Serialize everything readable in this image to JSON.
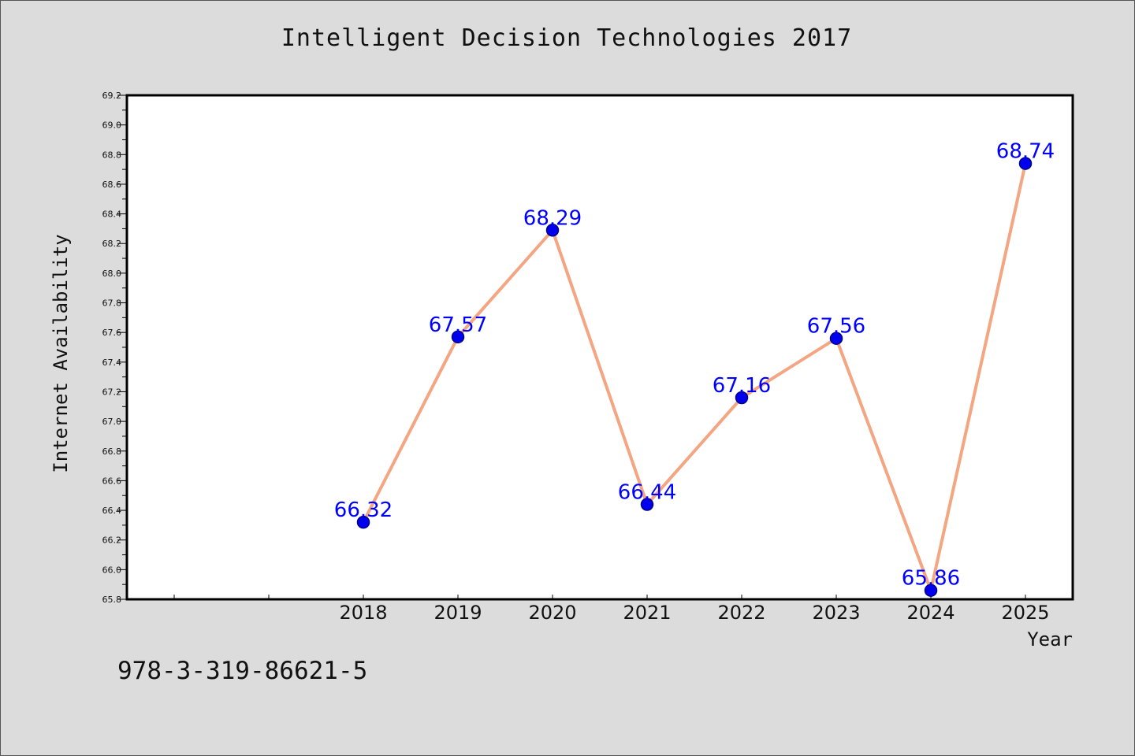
{
  "chart_data": {
    "type": "line",
    "title": "Intelligent Decision Technologies 2017",
    "xlabel": "Year",
    "ylabel": "Internet Availability",
    "categories": [
      "2018",
      "2019",
      "2020",
      "2021",
      "2022",
      "2023",
      "2024",
      "2025"
    ],
    "series": [
      {
        "values": [
          66.32,
          67.57,
          68.29,
          66.44,
          67.16,
          67.56,
          65.86,
          68.74
        ]
      }
    ],
    "data_labels": [
      "66.32",
      "67.57",
      "68.29",
      "66.44",
      "67.16",
      "67.56",
      "65.86",
      "68.74"
    ],
    "ylim": [
      65.8,
      69.2
    ],
    "yticks": [
      "65.8",
      "66.0",
      "66.2",
      "66.4",
      "66.6",
      "66.8",
      "67.0",
      "67.2",
      "67.4",
      "67.6",
      "67.8",
      "68.0",
      "68.2",
      "68.4",
      "68.6",
      "68.8",
      "69.0",
      "69.2"
    ],
    "grid": false,
    "legend": "none",
    "colors": {
      "line": "#f4a582",
      "marker": "#0000ee",
      "marker_edge": "#00008b",
      "label": "#0000ff",
      "plot_bg": "#ffffff",
      "figure_bg": "#dcdcdc"
    }
  },
  "footer": {
    "isbn": "978-3-319-86621-5"
  }
}
